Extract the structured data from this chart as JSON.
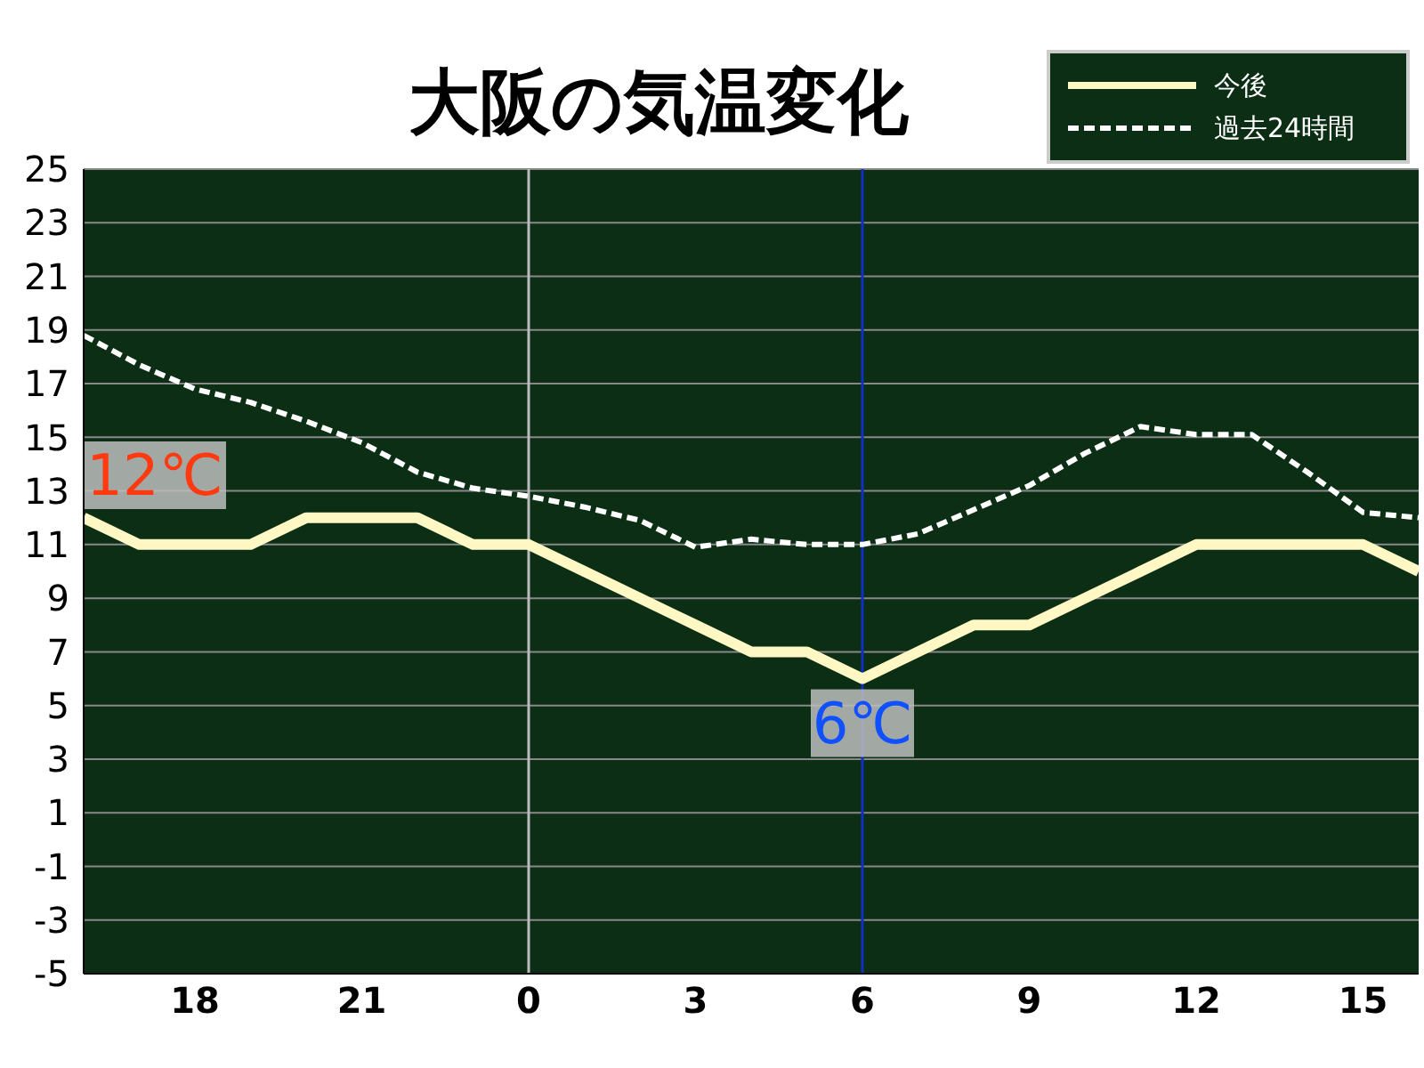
{
  "chart_data": {
    "type": "line",
    "title": "大阪の気温変化",
    "categories": [
      null,
      null,
      "18",
      null,
      null,
      "21",
      null,
      null,
      "0",
      null,
      null,
      "3",
      null,
      null,
      "6",
      null,
      null,
      "9",
      null,
      null,
      "12",
      null,
      null,
      "15",
      null
    ],
    "series": [
      {
        "name": "今後",
        "color": "#fff8c4",
        "line_style": "solid",
        "values": [
          12,
          11,
          11,
          11,
          12,
          12,
          12,
          11,
          11,
          10,
          9,
          8,
          7,
          7,
          6,
          7,
          8,
          8,
          9,
          10,
          11,
          11,
          11,
          11,
          10
        ]
      },
      {
        "name": "過去24時間",
        "color": "#ffffff",
        "line_style": "dashed",
        "values": [
          18.8,
          17.7,
          16.8,
          16.3,
          15.6,
          14.8,
          13.7,
          13.1,
          12.8,
          12.4,
          11.9,
          10.9,
          11.2,
          11.0,
          11.0,
          11.4,
          12.3,
          13.2,
          14.4,
          15.4,
          15.1,
          15.1,
          13.7,
          12.2,
          12.0
        ]
      }
    ],
    "ylim": [
      -5,
      25
    ],
    "yticks": [
      -5,
      -3,
      -1,
      1,
      3,
      5,
      7,
      9,
      11,
      13,
      15,
      17,
      19,
      21,
      23,
      25
    ],
    "ref_lines": [
      {
        "axis": "x",
        "value": "0",
        "color": "#bbbbbb"
      },
      {
        "axis": "x",
        "value": "6",
        "color": "#1030c0"
      }
    ],
    "annotations": [
      "12℃",
      {
        "text": "6℃",
        "x": "6",
        "y": 6
      }
    ],
    "grid": "y",
    "legend": "top right",
    "marker": "none"
  }
}
